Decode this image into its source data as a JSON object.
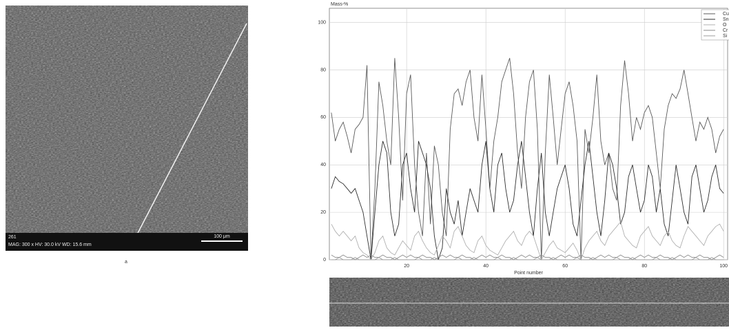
{
  "image": {
    "number": "261",
    "info": "MAG: 300 x   HV: 30.0 kV   WD: 15.6 mm",
    "scale": "100 μm",
    "caption": "a"
  },
  "chart_data": {
    "type": "line",
    "y_label": "Mass-%",
    "x_label": "Point number",
    "xlim": [
      0.5,
      101
    ],
    "xticks": [
      20,
      40,
      60,
      80,
      100
    ],
    "ylim": [
      0,
      106
    ],
    "yticks": [
      0,
      20,
      40,
      60,
      80,
      100
    ],
    "grid": true,
    "legend": "top-right",
    "x": [
      1,
      2,
      3,
      4,
      5,
      6,
      7,
      8,
      9,
      10,
      11,
      12,
      13,
      14,
      15,
      16,
      17,
      18,
      19,
      20,
      21,
      22,
      23,
      24,
      25,
      26,
      27,
      28,
      29,
      30,
      31,
      32,
      33,
      34,
      35,
      36,
      37,
      38,
      39,
      40,
      41,
      42,
      43,
      44,
      45,
      46,
      47,
      48,
      49,
      50,
      51,
      52,
      53,
      54,
      55,
      56,
      57,
      58,
      59,
      60,
      61,
      62,
      63,
      64,
      65,
      66,
      67,
      68,
      69,
      70,
      71,
      72,
      73,
      74,
      75,
      76,
      77,
      78,
      79,
      80,
      81,
      82,
      83,
      84,
      85,
      86,
      87,
      88,
      89,
      90,
      91,
      92,
      93,
      94,
      95,
      96,
      97,
      98,
      99,
      100
    ],
    "series": [
      {
        "name": "Cu",
        "color": "#5a5a5a",
        "values": [
          62,
          50,
          55,
          58,
          52,
          45,
          55,
          57,
          60,
          82,
          0,
          30,
          75,
          65,
          50,
          40,
          85,
          60,
          25,
          70,
          78,
          40,
          20,
          10,
          45,
          15,
          48,
          40,
          20,
          10,
          55,
          70,
          72,
          65,
          75,
          80,
          60,
          50,
          78,
          55,
          30,
          50,
          60,
          75,
          80,
          85,
          70,
          45,
          30,
          60,
          75,
          80,
          55,
          0,
          45,
          78,
          60,
          40,
          55,
          70,
          75,
          65,
          50,
          0,
          55,
          45,
          60,
          78,
          50,
          40,
          45,
          30,
          25,
          65,
          84,
          70,
          50,
          60,
          55,
          62,
          65,
          60,
          45,
          30,
          55,
          65,
          70,
          68,
          72,
          80,
          70,
          60,
          50,
          58,
          55,
          60,
          55,
          45,
          52,
          55
        ]
      },
      {
        "name": "Sn",
        "color": "#2e2e2e",
        "values": [
          30,
          35,
          33,
          32,
          30,
          28,
          30,
          25,
          20,
          10,
          0,
          20,
          40,
          50,
          45,
          20,
          10,
          15,
          40,
          45,
          30,
          20,
          50,
          45,
          40,
          30,
          10,
          0,
          5,
          30,
          20,
          15,
          25,
          10,
          20,
          30,
          25,
          20,
          40,
          50,
          30,
          20,
          40,
          45,
          30,
          20,
          25,
          40,
          50,
          35,
          20,
          10,
          30,
          45,
          20,
          10,
          20,
          30,
          35,
          40,
          30,
          15,
          10,
          25,
          40,
          50,
          35,
          20,
          10,
          25,
          45,
          40,
          30,
          15,
          20,
          35,
          40,
          30,
          20,
          25,
          40,
          35,
          20,
          30,
          15,
          10,
          25,
          40,
          30,
          20,
          15,
          35,
          40,
          30,
          20,
          25,
          35,
          40,
          30,
          28
        ]
      },
      {
        "name": "O",
        "color": "#b0b0b0",
        "values": [
          15,
          12,
          10,
          12,
          10,
          8,
          10,
          5,
          3,
          2,
          0,
          3,
          8,
          10,
          5,
          3,
          2,
          5,
          8,
          6,
          4,
          10,
          12,
          8,
          5,
          3,
          2,
          6,
          10,
          8,
          5,
          12,
          14,
          10,
          6,
          4,
          3,
          8,
          10,
          6,
          4,
          3,
          2,
          5,
          8,
          10,
          12,
          8,
          6,
          10,
          12,
          10,
          5,
          0,
          3,
          6,
          8,
          5,
          4,
          3,
          5,
          7,
          4,
          0,
          5,
          8,
          10,
          12,
          8,
          6,
          10,
          12,
          14,
          16,
          10,
          8,
          6,
          5,
          10,
          12,
          14,
          10,
          8,
          6,
          10,
          12,
          8,
          6,
          5,
          10,
          14,
          12,
          10,
          8,
          6,
          10,
          12,
          14,
          15,
          12
        ]
      },
      {
        "name": "Cr",
        "color": "#8a8a8a",
        "values": [
          2,
          1,
          1,
          2,
          1,
          1,
          0,
          1,
          2,
          1,
          2,
          1,
          1,
          2,
          1,
          1,
          0,
          1,
          2,
          1,
          2,
          1,
          1,
          2,
          1,
          1,
          0,
          1,
          2,
          1,
          2,
          1,
          1,
          2,
          1,
          1,
          0,
          1,
          2,
          1,
          2,
          1,
          1,
          2,
          1,
          1,
          0,
          1,
          2,
          1,
          2,
          1,
          1,
          2,
          1,
          1,
          0,
          1,
          2,
          1,
          2,
          1,
          1,
          2,
          1,
          1,
          0,
          1,
          2,
          1,
          2,
          1,
          1,
          2,
          1,
          1,
          0,
          1,
          2,
          1,
          2,
          1,
          1,
          2,
          1,
          1,
          0,
          1,
          2,
          1,
          2,
          1,
          1,
          2,
          1,
          1,
          0,
          1,
          2,
          1
        ]
      },
      {
        "name": "Si",
        "color": "#9c9c9c",
        "values": [
          0,
          0,
          1,
          0,
          0,
          0,
          1,
          0,
          0,
          0,
          0,
          0,
          1,
          0,
          0,
          0,
          1,
          0,
          0,
          0,
          0,
          0,
          1,
          0,
          0,
          0,
          1,
          0,
          0,
          0,
          0,
          0,
          1,
          0,
          0,
          0,
          1,
          0,
          0,
          0,
          0,
          0,
          1,
          0,
          0,
          0,
          1,
          0,
          0,
          0,
          0,
          0,
          1,
          0,
          0,
          0,
          1,
          0,
          0,
          0,
          0,
          0,
          1,
          0,
          0,
          0,
          1,
          0,
          0,
          0,
          0,
          0,
          1,
          0,
          0,
          0,
          1,
          0,
          0,
          0,
          0,
          0,
          1,
          0,
          0,
          0,
          1,
          0,
          0,
          0,
          0,
          0,
          1,
          0,
          0,
          0,
          1,
          0,
          0,
          0
        ]
      }
    ]
  }
}
